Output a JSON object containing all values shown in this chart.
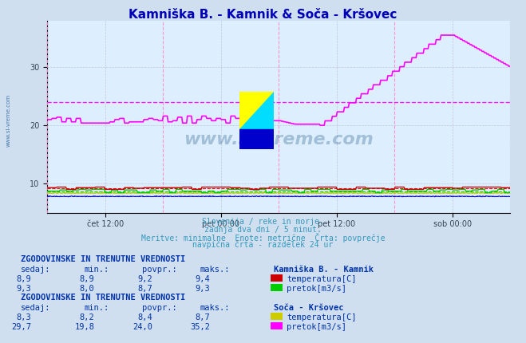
{
  "title": "Kamniška B. - Kamnik & Soča - Kršovec",
  "title_color": "#0000bb",
  "bg_color": "#d0dff0",
  "plot_bg_color": "#ddeeff",
  "grid_color": "#bbbbcc",
  "xlabel_ticks": [
    "čet 12:00",
    "pet 00:00",
    "pet 12:00",
    "sob 00:00"
  ],
  "x_tick_positions": [
    0.125,
    0.375,
    0.625,
    0.875
  ],
  "ymin": 5,
  "ymax": 38,
  "ytick_vals": [
    10,
    20,
    30
  ],
  "vline_positions": [
    0.0,
    0.25,
    0.5,
    0.75,
    1.0
  ],
  "footer_lines": [
    "Slovenija / reke in morje.",
    "zadnja dva dni / 5 minut.",
    "Meritve: minimalne  Enote: metrične  Črta: povprečje",
    "navpična črta - razdelek 24 ur"
  ],
  "footer_color": "#3399bb",
  "watermark_text": "www.si-vreme.com",
  "watermark_color": "#1a5580",
  "section1_title": "ZGODOVINSKE IN TRENUTNE VREDNOSTI",
  "section1_station": "Kamniška B. - Kamnik",
  "section2_title": "ZGODOVINSKE IN TRENUTNE VREDNOSTI",
  "section2_station": "Soča - Kršovec",
  "section1_rows": [
    [
      "8,9",
      "8,9",
      "9,2",
      "9,4",
      "#cc0000",
      "temperatura[C]"
    ],
    [
      "9,3",
      "8,0",
      "8,7",
      "9,3",
      "#00cc00",
      "pretok[m3/s]"
    ]
  ],
  "section2_rows": [
    [
      "8,3",
      "8,2",
      "8,4",
      "8,7",
      "#cccc00",
      "temperatura[C]"
    ],
    [
      "29,7",
      "19,8",
      "24,0",
      "35,2",
      "#ff00ff",
      "pretok[m3/s]"
    ]
  ],
  "line_kamnik_temp_color": "#cc0000",
  "line_kamnik_temp_avg": 9.2,
  "line_kamnik_flow_color": "#00cc00",
  "line_kamnik_flow_avg": 8.7,
  "line_soca_temp_color": "#cccc00",
  "line_soca_temp_avg": 8.4,
  "line_soca_flow_color": "#ff00ff",
  "line_soca_flow_avg": 24.0,
  "line_blue_color": "#0000ff",
  "line_blue_avg": 7.8,
  "sidebar_text": "www.si-vreme.com",
  "sidebar_color": "#4477aa",
  "table_color": "#0033aa",
  "table_header_color": "#0033aa"
}
